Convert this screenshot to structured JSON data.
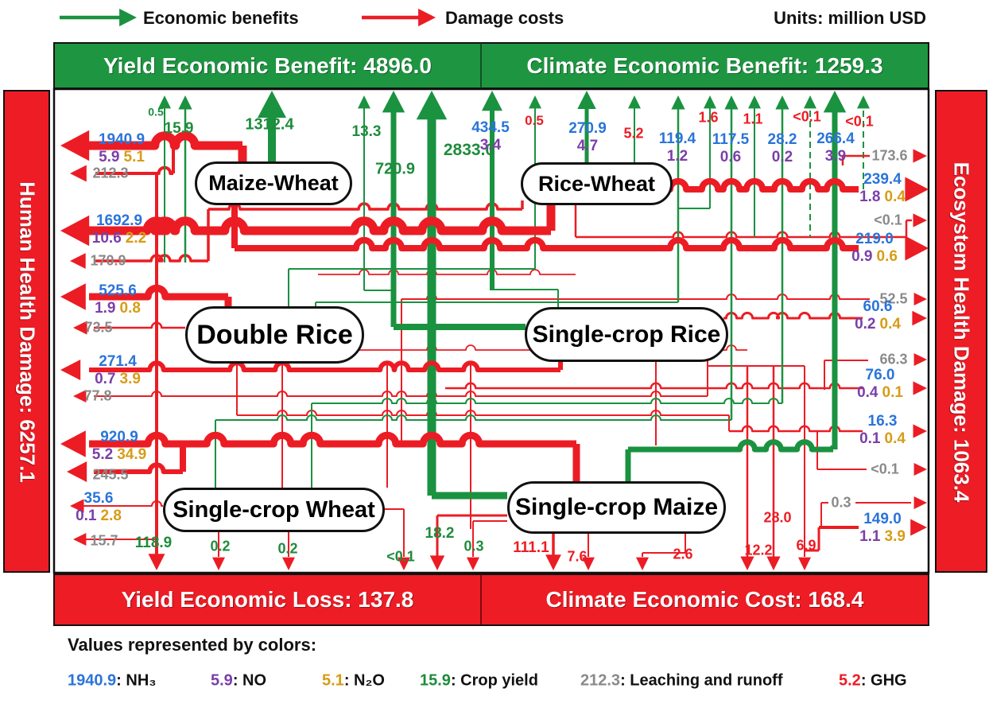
{
  "legend_top": {
    "benefits": "Economic benefits",
    "costs": "Damage costs",
    "units": "Units: million USD"
  },
  "banners": {
    "yield_benefit": "Yield Economic Benefit: 4896.0",
    "climate_benefit": "Climate Economic Benefit: 1259.3",
    "yield_loss": "Yield Economic Loss: 137.8",
    "climate_cost": "Climate Economic Cost: 168.4",
    "human_health": "Human Health Damage: 6257.1",
    "ecosystem_health": "Ecosystem Health Damage: 1063.4"
  },
  "crops": {
    "maize_wheat": "Maize-Wheat",
    "rice_wheat": "Rice-Wheat",
    "double_rice": "Double Rice",
    "single_rice": "Single-crop Rice",
    "single_wheat": "Single-crop Wheat",
    "single_maize": "Single-crop Maize"
  },
  "left_flows": [
    {
      "nh3": "1940.9",
      "no": "5.9",
      "n2o": "5.1"
    },
    {
      "leaching": "212.3"
    },
    {
      "nh3": "1692.9",
      "no": "10.6",
      "n2o": "2.2"
    },
    {
      "leaching": "170.9"
    },
    {
      "nh3": "525.6",
      "no": "1.9",
      "n2o": "0.8"
    },
    {
      "leaching": "73.5"
    },
    {
      "nh3": "271.4",
      "no": "0.7",
      "n2o": "3.9"
    },
    {
      "leaching": "77.8"
    },
    {
      "nh3": "920.9",
      "no": "5.2",
      "n2o": "34.9"
    },
    {
      "leaching": "245.5"
    },
    {
      "nh3": "35.6",
      "no": "0.1",
      "n2o": "2.8"
    },
    {
      "leaching": "15.7"
    }
  ],
  "right_flows": [
    {
      "leaching": "173.6"
    },
    {
      "nh3": "239.4",
      "no": "1.8",
      "n2o": "0.4"
    },
    {
      "leaching": "<0.1"
    },
    {
      "nh3": "219.0",
      "no": "0.9",
      "n2o": "0.6"
    },
    {
      "leaching": "52.5"
    },
    {
      "nh3": "60.6",
      "no": "0.2",
      "n2o": "0.4"
    },
    {
      "leaching": "66.3"
    },
    {
      "nh3": "76.0",
      "no": "0.4",
      "n2o": "0.1"
    },
    {
      "nh3": "16.3",
      "no": "0.1",
      "n2o": "0.4"
    },
    {
      "leaching": "<0.1"
    },
    {
      "leaching": "0.3"
    },
    {
      "nh3": "149.0",
      "no": "1.1",
      "n2o": "3.9"
    }
  ],
  "top_flows": {
    "yield": [
      "0.5",
      "15.9",
      "1312.4",
      "13.3",
      "720.9",
      "2833.0"
    ],
    "pairs": [
      {
        "nh3": "434.5",
        "no": "3.4"
      },
      {
        "nh3": "270.9",
        "no": "4.7"
      },
      {
        "nh3": "119.4",
        "no": "1.2"
      },
      {
        "nh3": "117.5",
        "no": "0.6"
      },
      {
        "nh3": "28.2",
        "no": "0.2"
      },
      {
        "nh3": "266.4",
        "no": "3.9"
      }
    ],
    "ghg": [
      "0.5",
      "5.2",
      "1.6",
      "1.1",
      "<0.1",
      "<0.1"
    ]
  },
  "bottom_flows": {
    "yield_loss": [
      "118.9",
      "0.2",
      "0.2",
      "<0.1",
      "18.2",
      "0.3"
    ],
    "climate_cost": [
      "111.1",
      "7.6",
      "2.6",
      "12.2",
      "28.0",
      "6.9"
    ]
  },
  "color_legend": {
    "title": "Values represented by colors:",
    "separator": ": ",
    "items": [
      {
        "value": "1940.9",
        "label": "NH₃"
      },
      {
        "value": "5.9",
        "label": "NO"
      },
      {
        "value": "5.1",
        "label": "N₂O"
      },
      {
        "value": "15.9",
        "label": "Crop yield"
      },
      {
        "value": "212.3",
        "label": "Leaching and runoff"
      },
      {
        "value": "5.2",
        "label": "GHG"
      }
    ]
  },
  "colors": {
    "benefit_green": "#1a9240",
    "damage_red": "#ec1c24",
    "nh3_blue": "#2a74d9",
    "no_purple": "#7b3fa8",
    "n2o_orange": "#d79c17",
    "crop_yield_green": "#1e8c3c",
    "leaching_gray": "#8a8a8a",
    "banner_green": "#1e9641",
    "banner_red": "#ee1c25"
  }
}
